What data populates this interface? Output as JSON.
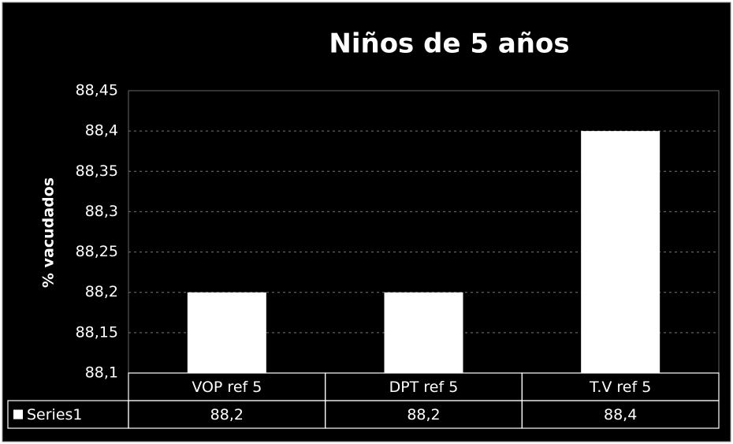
{
  "chart_data": {
    "type": "bar",
    "title": "Niños de 5 años",
    "y_label": "% vacudados",
    "categories": [
      "VOP ref 5",
      "DPT ref 5",
      "T.V ref 5"
    ],
    "series": [
      {
        "name": "Series1",
        "color": "#ffffff",
        "values": [
          88.2,
          88.2,
          88.4
        ],
        "value_labels": [
          "88,2",
          "88,2",
          "88,4"
        ]
      }
    ],
    "ylim": [
      88.1,
      88.45
    ],
    "yticks": [
      {
        "value": 88.1,
        "label": "88,1"
      },
      {
        "value": 88.15,
        "label": "88,15"
      },
      {
        "value": 88.2,
        "label": "88,2"
      },
      {
        "value": 88.25,
        "label": "88,25"
      },
      {
        "value": 88.3,
        "label": "88,3"
      },
      {
        "value": 88.35,
        "label": "88,35"
      },
      {
        "value": 88.4,
        "label": "88,4"
      },
      {
        "value": 88.45,
        "label": "88,45"
      }
    ],
    "grid": true
  }
}
